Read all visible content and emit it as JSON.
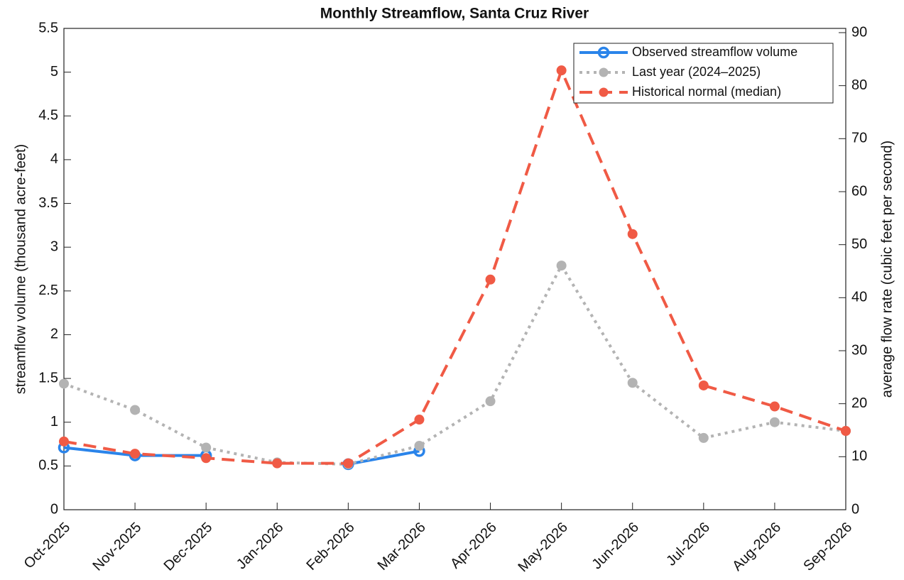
{
  "chart_data": {
    "type": "line",
    "title": "Monthly Streamflow, Santa Cruz River",
    "y_label": "streamflow volume (thousand acre-feet)",
    "y2_label": "average flow rate (cubic feet per second)",
    "categories": [
      "Oct-2025",
      "Nov-2025",
      "Dec-2025",
      "Jan-2026",
      "Feb-2026",
      "Mar-2026",
      "Apr-2026",
      "May-2026",
      "Jun-2026",
      "Jul-2026",
      "Aug-2026",
      "Sep-2026"
    ],
    "ylim": [
      0,
      5.5
    ],
    "yticks": [
      0,
      0.5,
      1,
      1.5,
      2,
      2.5,
      3,
      3.5,
      4,
      4.5,
      5,
      5.5
    ],
    "y2lim": [
      0,
      90.8
    ],
    "y2ticks": [
      0,
      10,
      20,
      30,
      40,
      50,
      60,
      70,
      80,
      90
    ],
    "legend_position": "upper right",
    "series": [
      {
        "name": "Observed streamflow volume",
        "color": "#2a84ea",
        "line_style": "solid",
        "marker": "open",
        "values": [
          0.71,
          0.62,
          0.62,
          null,
          0.52,
          0.67,
          null,
          null,
          null,
          null,
          null,
          null
        ]
      },
      {
        "name": "Last year (2024–2025)",
        "color": "#b3b3b3",
        "line_style": "dotted",
        "marker": "filled",
        "values": [
          1.44,
          1.14,
          0.71,
          0.54,
          0.52,
          0.73,
          1.24,
          2.79,
          1.45,
          0.82,
          1.0,
          0.9
        ]
      },
      {
        "name": "Historical normal (median)",
        "color": "#f05a45",
        "line_style": "dashed",
        "marker": "filled",
        "values": [
          0.78,
          0.64,
          0.59,
          0.53,
          0.53,
          1.03,
          2.63,
          5.02,
          3.15,
          1.42,
          1.18,
          0.9
        ]
      }
    ]
  }
}
